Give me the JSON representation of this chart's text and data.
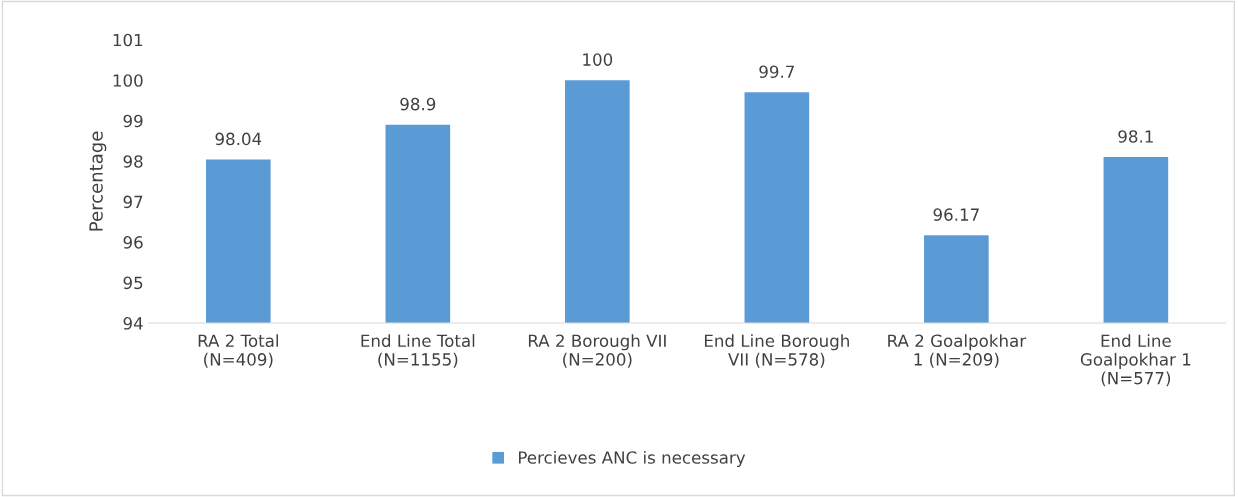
{
  "chart_data": {
    "type": "bar",
    "ylabel": "Percentage",
    "categories": [
      "RA 2 Total\n(N=409)",
      "End Line Total\n(N=1155)",
      "RA 2 Borough VII\n(N=200)",
      "End Line Borough\nVII (N=578)",
      "RA 2 Goalpokhar\n1 (N=209)",
      "End Line\nGoalpokhar 1\n(N=577)"
    ],
    "series": [
      {
        "name": "Percieves ANC is necessary",
        "color": "#5b9bd5",
        "values": [
          98.04,
          98.9,
          100,
          99.7,
          96.17,
          98.1
        ]
      }
    ],
    "ylim": [
      94,
      101
    ],
    "yticks": [
      94,
      95,
      96,
      97,
      98,
      99,
      100,
      101
    ],
    "data_labels": true,
    "grid": false,
    "legend": "bottom"
  }
}
